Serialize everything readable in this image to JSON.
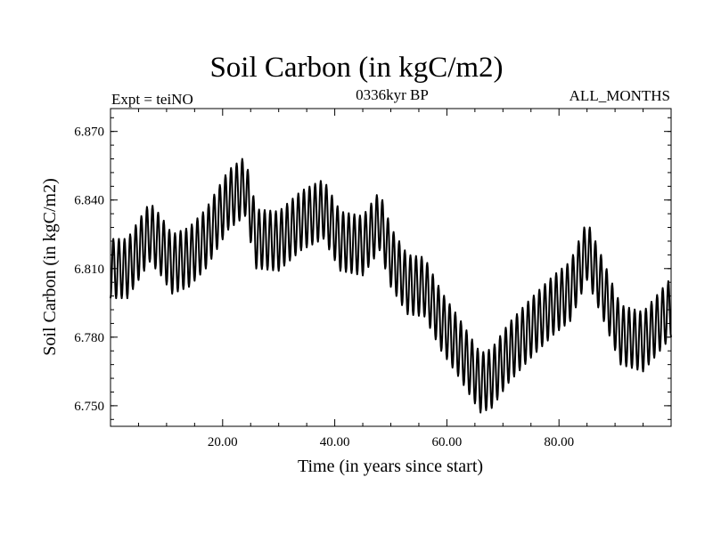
{
  "chart_data": {
    "type": "line",
    "title": "Soil Carbon (in kgC/m2)",
    "subtitle_left": "Expt = teiNO",
    "subtitle_center": "0336kyr BP",
    "subtitle_right": "ALL_MONTHS",
    "xlabel": "Time (in years since start)",
    "ylabel": "Soil Carbon (in kgC/m2)",
    "xlim": [
      0,
      100
    ],
    "ylim": [
      6.741,
      6.88
    ],
    "x_ticks": [
      20,
      40,
      60,
      80
    ],
    "x_tick_labels": [
      "20.00",
      "40.00",
      "60.00",
      "80.00"
    ],
    "y_ticks": [
      6.75,
      6.78,
      6.81,
      6.84,
      6.87
    ],
    "y_tick_labels": [
      "6.750",
      "6.780",
      "6.810",
      "6.840",
      "6.870"
    ],
    "grid": false,
    "series": [
      {
        "name": "Soil Carbon",
        "color": "#000000",
        "samples_per_year": 12,
        "seasonal_amplitude": 0.013,
        "trend": [
          [
            0,
            6.81
          ],
          [
            3,
            6.81
          ],
          [
            7,
            6.826
          ],
          [
            9,
            6.82
          ],
          [
            11,
            6.812
          ],
          [
            14,
            6.815
          ],
          [
            17,
            6.823
          ],
          [
            21,
            6.84
          ],
          [
            24,
            6.846
          ],
          [
            26,
            6.823
          ],
          [
            30,
            6.822
          ],
          [
            34,
            6.831
          ],
          [
            38,
            6.836
          ],
          [
            41,
            6.822
          ],
          [
            45,
            6.82
          ],
          [
            48,
            6.831
          ],
          [
            50,
            6.815
          ],
          [
            53,
            6.803
          ],
          [
            56,
            6.802
          ],
          [
            59,
            6.787
          ],
          [
            62,
            6.776
          ],
          [
            66,
            6.76
          ],
          [
            68,
            6.762
          ],
          [
            71,
            6.773
          ],
          [
            75,
            6.784
          ],
          [
            79,
            6.794
          ],
          [
            82,
            6.8
          ],
          [
            85,
            6.818
          ],
          [
            88,
            6.8
          ],
          [
            91,
            6.781
          ],
          [
            95,
            6.778
          ],
          [
            100,
            6.793
          ]
        ]
      }
    ]
  }
}
